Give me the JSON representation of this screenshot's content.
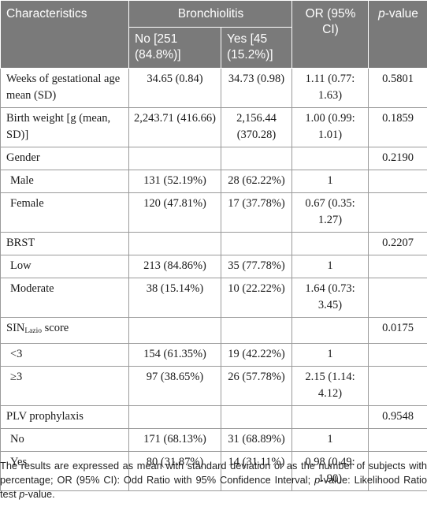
{
  "header": {
    "characteristics": "Characteristics",
    "bronchiolitis": "Bronchiolitis",
    "or_label": "OR (95% CI)",
    "p_value_italic": "p",
    "p_value_rest": "-value",
    "no_label": "No [251 (84.8%)]",
    "yes_label": "Yes [45 (15.2%)]"
  },
  "rows": [
    {
      "label": "Weeks of gestational age mean (SD)",
      "no": "34.65 (0.84)",
      "yes": "34.73 (0.98)",
      "or": "1.11 (0.77: 1.63)",
      "p": "0.5801"
    },
    {
      "label": "Birth weight [g (mean, SD)]",
      "no": "2,243.71 (416.66)",
      "yes": "2,156.44 (370.28)",
      "or": "1.00 (0.99: 1.01)",
      "p": "0.1859"
    },
    {
      "label": "Gender",
      "no": "",
      "yes": "",
      "or": "",
      "p": "0.2190"
    },
    {
      "label": "Male",
      "no": "131 (52.19%)",
      "yes": "28 (62.22%)",
      "or": "1",
      "p": ""
    },
    {
      "label": "Female",
      "no": "120 (47.81%)",
      "yes": "17 (37.78%)",
      "or": "0.67 (0.35: 1.27)",
      "p": ""
    },
    {
      "label": "BRST",
      "no": "",
      "yes": "",
      "or": "",
      "p": "0.2207"
    },
    {
      "label": "Low",
      "no": "213 (84.86%)",
      "yes": "35 (77.78%)",
      "or": "1",
      "p": ""
    },
    {
      "label": "Moderate",
      "no": "38 (15.14%)",
      "yes": "10 (22.22%)",
      "or": "1.64 (0.73: 3.45)",
      "p": ""
    },
    {
      "label_main": "SIN",
      "label_sub": "Lazio",
      "label_rest": " score",
      "no": "",
      "yes": "",
      "or": "",
      "p": "0.0175"
    },
    {
      "label": "<3",
      "no": "154 (61.35%)",
      "yes": "19 (42.22%)",
      "or": "1",
      "p": ""
    },
    {
      "label": "≥3",
      "no": "97 (38.65%)",
      "yes": "26 (57.78%)",
      "or": "2.15 (1.14: 4.12)",
      "p": ""
    },
    {
      "label": "PLV prophylaxis",
      "no": "",
      "yes": "",
      "or": "",
      "p": "0.9548"
    },
    {
      "label": "No",
      "no": "171 (68.13%)",
      "yes": "31 (68.89%)",
      "or": "1",
      "p": ""
    },
    {
      "label": "Yes",
      "no": "80 (31.87%)",
      "yes": "14 (31.11%)",
      "or": "0.98 (0.49: 1.90)",
      "p": ""
    }
  ],
  "footnote": {
    "part1": "The results are expressed as mean with standard deviation or as the number of subjects with percentage; OR (95% CI): Odd Ratio with 95% Confidence Interval; ",
    "p_italic1": "p",
    "part2": "-value: Likelihood Ratio test ",
    "p_italic2": "p",
    "part3": "-value."
  }
}
